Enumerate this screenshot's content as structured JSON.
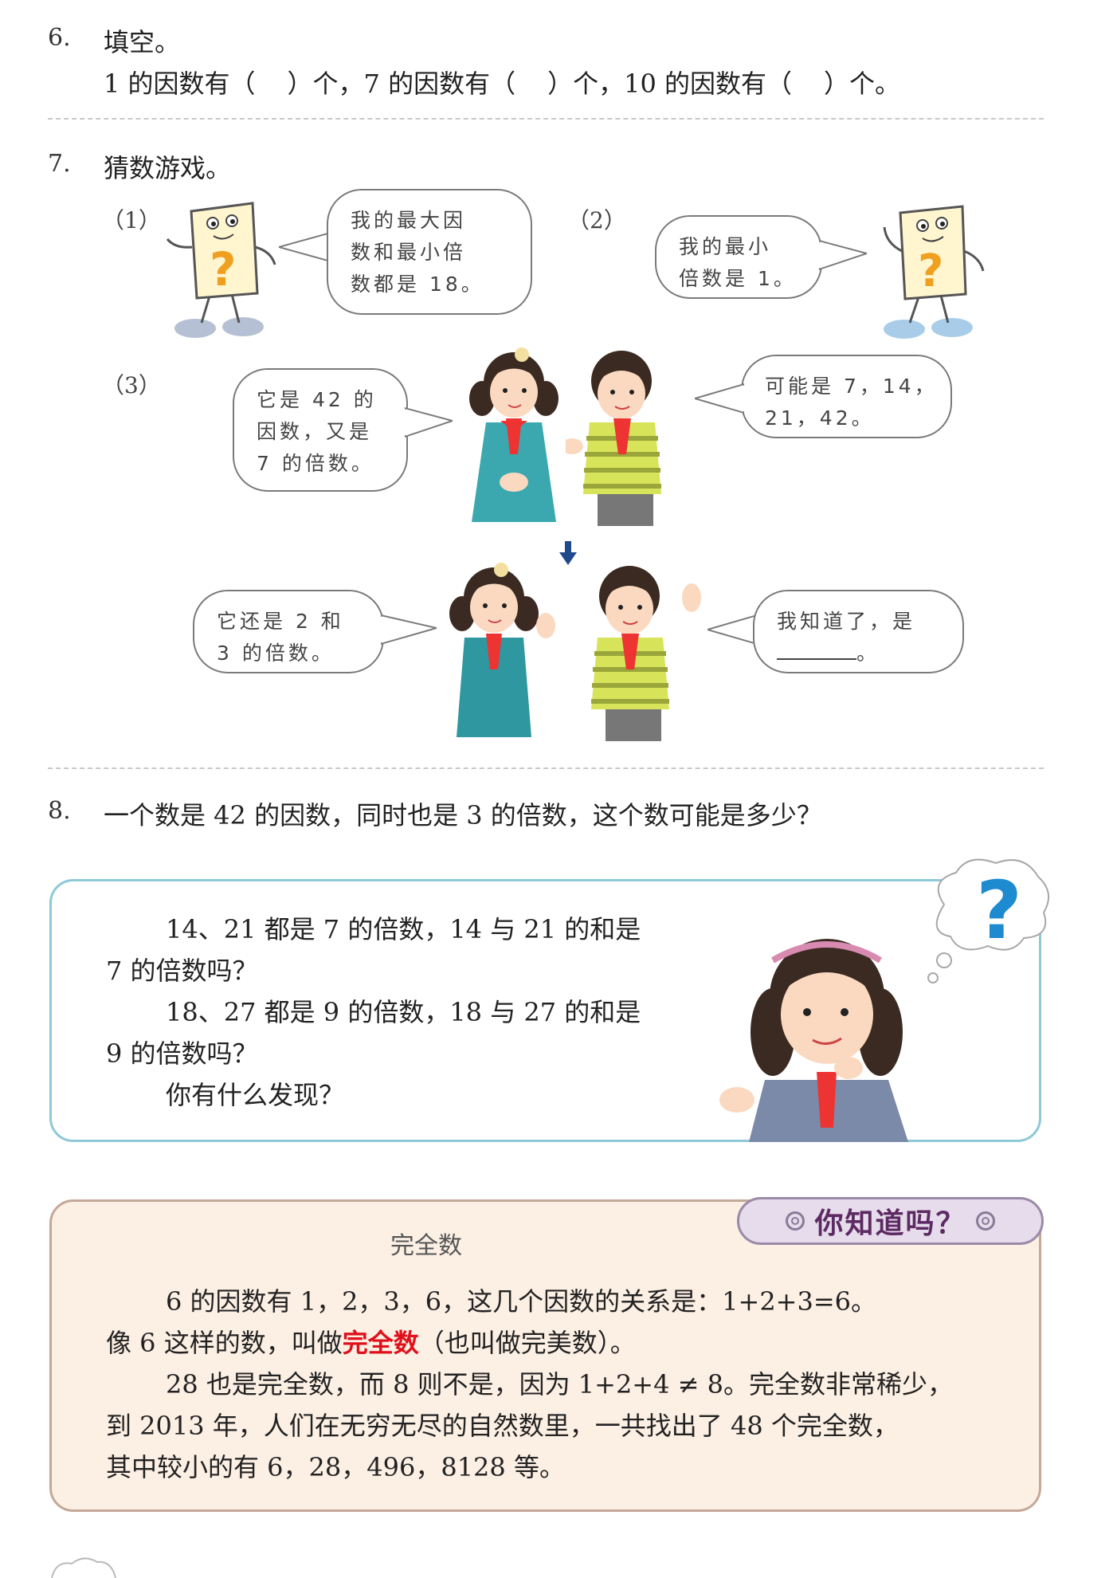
{
  "q6": {
    "number": "6.",
    "title": "填空。",
    "line_a": "1 的因数有（",
    "line_b": "）个，7 的因数有（",
    "line_c": "）个，10 的因数有（",
    "line_d": "）个。"
  },
  "q7": {
    "number": "7.",
    "title": "猜数游戏。",
    "part1": {
      "label": "（1）",
      "bubble": [
        "我的最大因",
        "数和最小倍",
        "数都是 18。"
      ]
    },
    "part2": {
      "label": "（2）",
      "bubble": [
        "我的最小",
        "倍数是 1。"
      ]
    },
    "part3": {
      "label": "（3）",
      "girl_bubble": [
        "它是 42 的",
        "因数，又是",
        "7 的倍数。"
      ],
      "boy_bubble": [
        "可能是 7，14，",
        "21，42。"
      ],
      "girl_bubble2": [
        "它还是 2 和",
        "3 的倍数。"
      ],
      "boy_bubble2_a": "我知道了，是",
      "boy_bubble2_b": "。"
    }
  },
  "q8": {
    "number": "8.",
    "text": "一个数是 42 的因数，同时也是 3 的倍数，这个数可能是多少？"
  },
  "think_box": {
    "line1": "14、21 都是 7 的倍数，14 与 21 的和是",
    "line2": "7 的倍数吗？",
    "line3": "18、27 都是 9 的倍数，18 与 27 的和是",
    "line4": "9 的倍数吗？",
    "line5": "你有什么发现？"
  },
  "did_you_know": {
    "badge": "你知道吗？",
    "title": "完全数",
    "p1": "6 的因数有 1，2，3，6，这几个因数的关系是：1+2+3=6。",
    "p2_pre": "像 6 这样的数，叫做",
    "p2_term": "完全数",
    "p2_post": "（也叫做完美数）。",
    "p3": "28 也是完全数，而 8 则不是，因为 1+2+4 ≠ 8。完全数非常稀少，",
    "p4": "到 2013 年，人们在无穷无尽的自然数里，一共找出了 48 个完全数，",
    "p5": "其中较小的有 6，28，496，8128 等。"
  },
  "colors": {
    "question_mark": "#f0a020",
    "help_question": "#1e8ad0",
    "box_border_blue": "#8ec9d6",
    "box_fill_peach": "#fcefe4",
    "term_red": "#e0101b",
    "badge_text": "#5d2a63"
  },
  "icons": [
    "question-card-character",
    "down-arrow-icon",
    "thinking-cloud-icon",
    "ring-icon"
  ]
}
